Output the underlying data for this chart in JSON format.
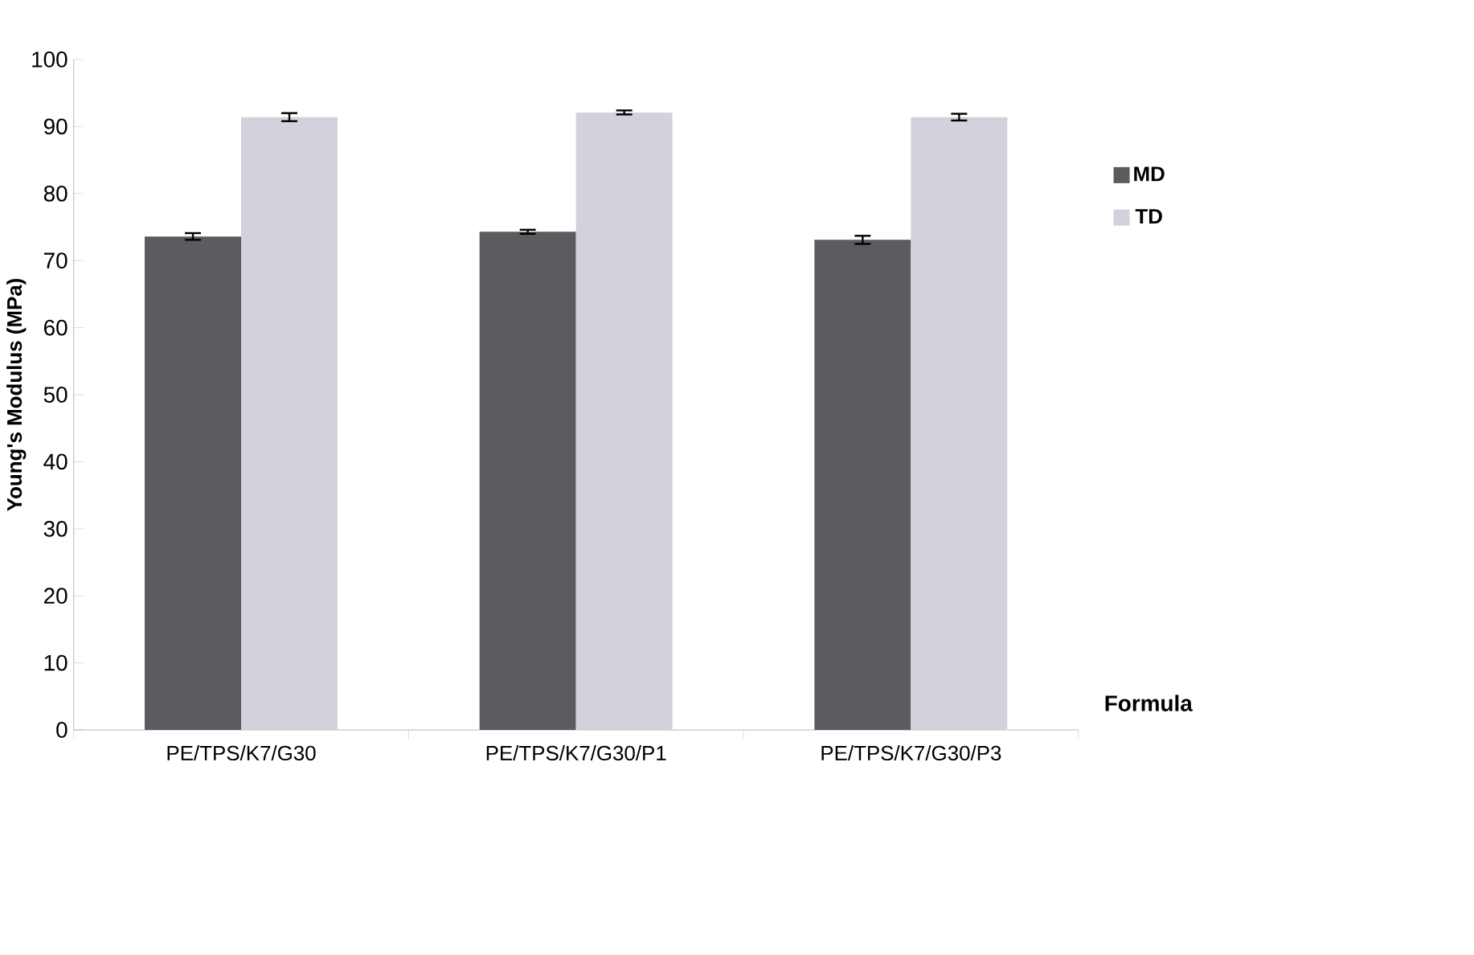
{
  "chart_data": {
    "type": "bar",
    "xlabel": "Formula",
    "ylabel": "Young's Modulus (MPa)",
    "categories": [
      "PE/TPS/K7/G30",
      "PE/TPS/K7/G30/P1",
      "PE/TPS/K7/G30/P3"
    ],
    "series": [
      {
        "name": "MD",
        "color": "#5d5a60",
        "values": [
          73.6,
          74.3,
          73.1
        ],
        "errors": [
          0.5,
          0.3,
          0.6
        ]
      },
      {
        "name": "TD",
        "color": "#d4d0dc",
        "values": [
          91.4,
          92.1,
          91.4
        ],
        "errors": [
          0.6,
          0.3,
          0.5
        ]
      }
    ],
    "ylim": [
      0,
      100
    ],
    "yticks": [
      0,
      10,
      20,
      30,
      40,
      50,
      60,
      70,
      80,
      90,
      100
    ],
    "grid": false,
    "legend": "right"
  }
}
